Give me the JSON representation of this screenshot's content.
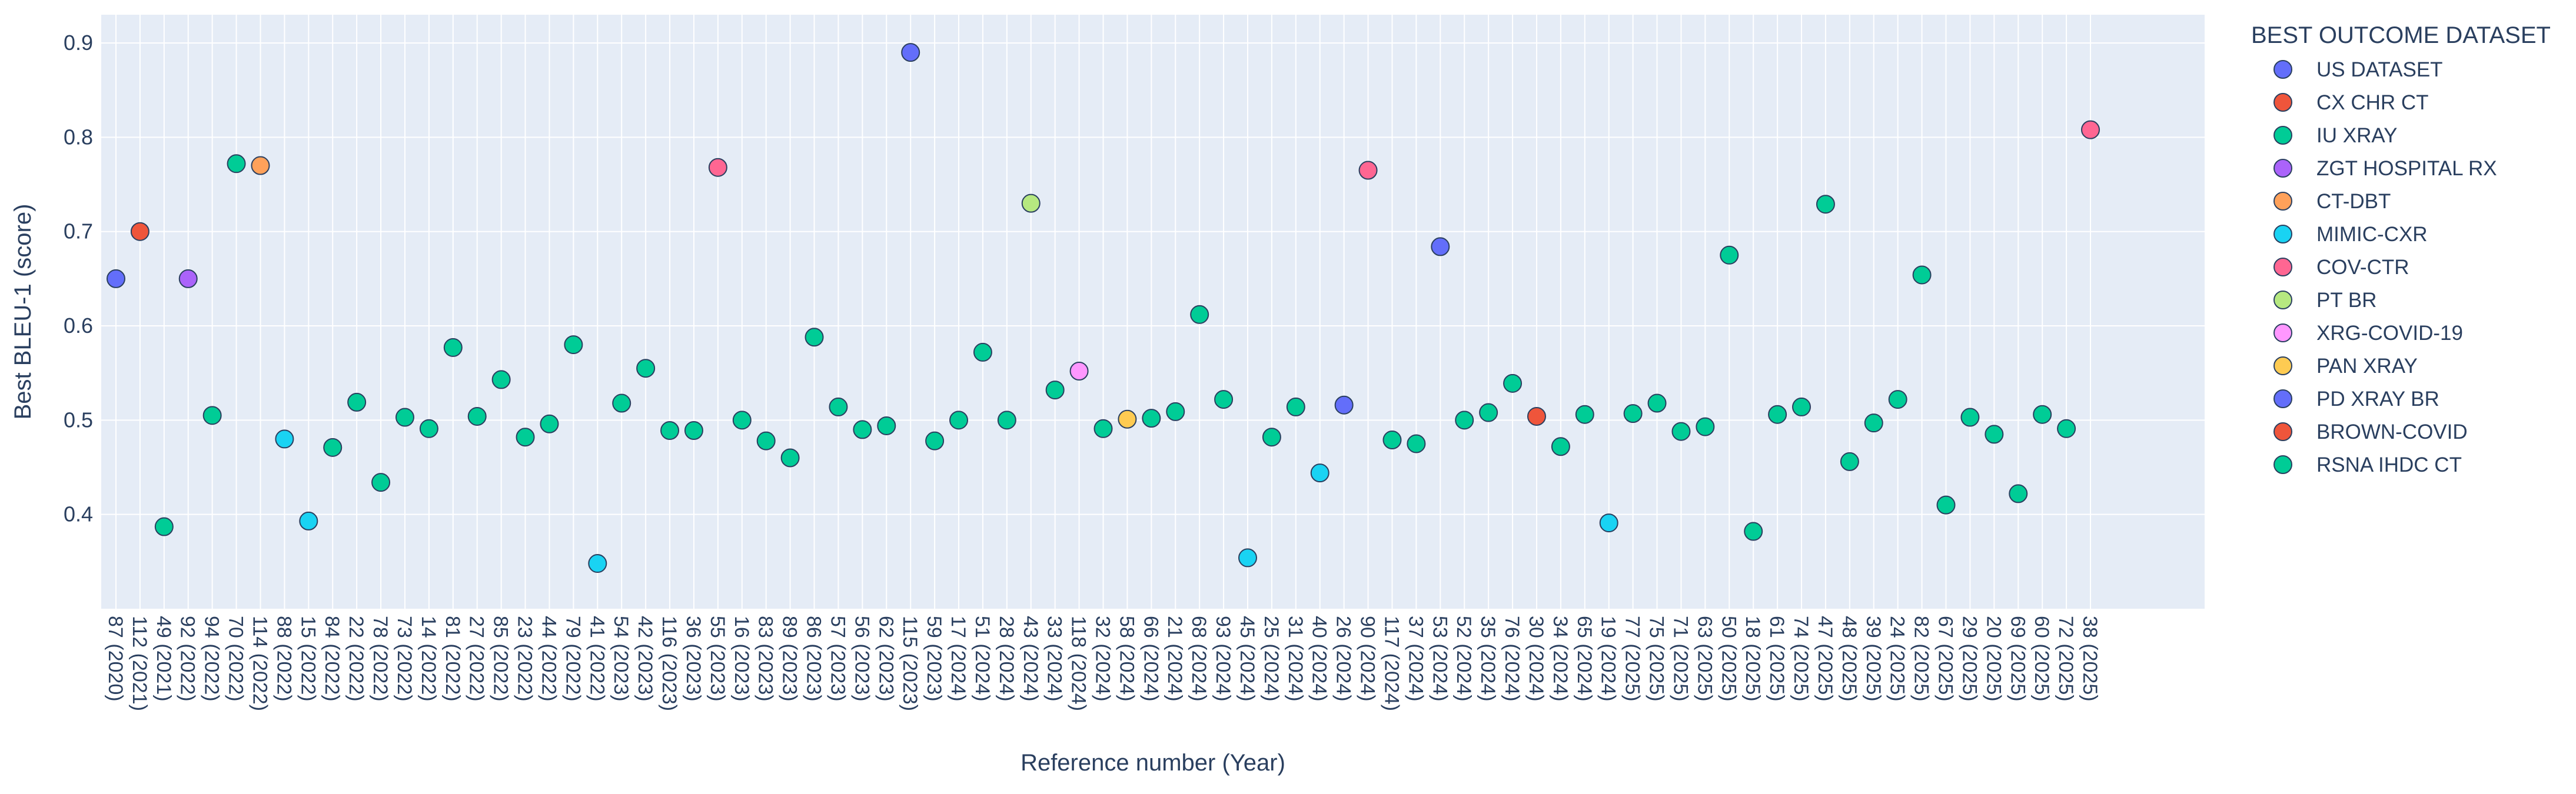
{
  "chart_data": {
    "type": "scatter",
    "title": "",
    "xlabel": "Reference number (Year)",
    "ylabel": "Best BLEU-1 (score)",
    "ylim": [
      0.3,
      0.93
    ],
    "yticks": [
      0.4,
      0.5,
      0.6,
      0.7,
      0.8,
      0.9
    ],
    "grid": true,
    "legend_title": "BEST OUTCOME DATASET",
    "legend_position": "right",
    "series": [
      {
        "name": "US DATASET",
        "color": "#636efa"
      },
      {
        "name": "CX  CHR CT",
        "color": "#ef553b"
      },
      {
        "name": "IU XRAY",
        "color": "#00cc96"
      },
      {
        "name": "ZGT HOSPITAL RX",
        "color": "#ab63fa"
      },
      {
        "name": "CT-DBT",
        "color": "#ffa15a"
      },
      {
        "name": "MIMIC-CXR",
        "color": "#19d3f3"
      },
      {
        "name": "COV-CTR",
        "color": "#ff6692"
      },
      {
        "name": "PT BR",
        "color": "#b6e880"
      },
      {
        "name": "XRG-COVID-19",
        "color": "#ff97ff"
      },
      {
        "name": "PAN XRAY",
        "color": "#fecb52"
      },
      {
        "name": "PD XRAY BR",
        "color": "#636efa"
      },
      {
        "name": "BROWN-COVID",
        "color": "#ef553b"
      },
      {
        "name": "RSNA IHDC CT",
        "color": "#00cc96"
      }
    ],
    "points": [
      {
        "x": "87 (2020)",
        "y": 0.65,
        "series": 0
      },
      {
        "x": "112 (2021)",
        "y": 0.7,
        "series": 1
      },
      {
        "x": "49 (2021)",
        "y": 0.387,
        "series": 2
      },
      {
        "x": "92 (2022)",
        "y": 0.65,
        "series": 3
      },
      {
        "x": "94 (2022)",
        "y": 0.505,
        "series": 2
      },
      {
        "x": "70 (2022)",
        "y": 0.772,
        "series": 2
      },
      {
        "x": "114 (2022)",
        "y": 0.77,
        "series": 4
      },
      {
        "x": "88 (2022)",
        "y": 0.48,
        "series": 5
      },
      {
        "x": "15 (2022)",
        "y": 0.393,
        "series": 5
      },
      {
        "x": "84 (2022)",
        "y": 0.471,
        "series": 2
      },
      {
        "x": "22 (2022)",
        "y": 0.519,
        "series": 2
      },
      {
        "x": "78 (2022)",
        "y": 0.434,
        "series": 2
      },
      {
        "x": "73 (2022)",
        "y": 0.503,
        "series": 2
      },
      {
        "x": "14 (2022)",
        "y": 0.491,
        "series": 2
      },
      {
        "x": "81 (2022)",
        "y": 0.577,
        "series": 2
      },
      {
        "x": "27 (2022)",
        "y": 0.504,
        "series": 2
      },
      {
        "x": "85 (2022)",
        "y": 0.543,
        "series": 2
      },
      {
        "x": "23 (2022)",
        "y": 0.482,
        "series": 2
      },
      {
        "x": "44 (2022)",
        "y": 0.496,
        "series": 2
      },
      {
        "x": "79 (2022)",
        "y": 0.58,
        "series": 2
      },
      {
        "x": "41 (2022)",
        "y": 0.348,
        "series": 5
      },
      {
        "x": "54 (2023)",
        "y": 0.518,
        "series": 2
      },
      {
        "x": "42 (2023)",
        "y": 0.555,
        "series": 2
      },
      {
        "x": "116 (2023)",
        "y": 0.489,
        "series": 2
      },
      {
        "x": "36 (2023)",
        "y": 0.489,
        "series": 2
      },
      {
        "x": "55 (2023)",
        "y": 0.768,
        "series": 6
      },
      {
        "x": "16 (2023)",
        "y": 0.5,
        "series": 2
      },
      {
        "x": "83 (2023)",
        "y": 0.478,
        "series": 2
      },
      {
        "x": "89 (2023)",
        "y": 0.46,
        "series": 2
      },
      {
        "x": "86 (2023)",
        "y": 0.588,
        "series": 2
      },
      {
        "x": "57 (2023)",
        "y": 0.514,
        "series": 2
      },
      {
        "x": "56 (2023)",
        "y": 0.49,
        "series": 2
      },
      {
        "x": "62 (2023)",
        "y": 0.494,
        "series": 2
      },
      {
        "x": "115 (2023)",
        "y": 0.89,
        "series": 0
      },
      {
        "x": "59 (2023)",
        "y": 0.478,
        "series": 2
      },
      {
        "x": "17 (2024)",
        "y": 0.5,
        "series": 2
      },
      {
        "x": "51 (2024)",
        "y": 0.572,
        "series": 2
      },
      {
        "x": "28 (2024)",
        "y": 0.5,
        "series": 2
      },
      {
        "x": "43 (2024)",
        "y": 0.73,
        "series": 7
      },
      {
        "x": "33 (2024)",
        "y": 0.532,
        "series": 2
      },
      {
        "x": "118 (2024)",
        "y": 0.552,
        "series": 8
      },
      {
        "x": "32 (2024)",
        "y": 0.491,
        "series": 2
      },
      {
        "x": "58 (2024)",
        "y": 0.501,
        "series": 9
      },
      {
        "x": "66 (2024)",
        "y": 0.502,
        "series": 2
      },
      {
        "x": "21 (2024)",
        "y": 0.509,
        "series": 2
      },
      {
        "x": "68 (2024)",
        "y": 0.612,
        "series": 2
      },
      {
        "x": "93 (2024)",
        "y": 0.522,
        "series": 2
      },
      {
        "x": "45 (2024)",
        "y": 0.354,
        "series": 5
      },
      {
        "x": "25 (2024)",
        "y": 0.482,
        "series": 2
      },
      {
        "x": "31 (2024)",
        "y": 0.514,
        "series": 2
      },
      {
        "x": "40 (2024)",
        "y": 0.444,
        "series": 5
      },
      {
        "x": "26 (2024)",
        "y": 0.516,
        "series": 10
      },
      {
        "x": "90 (2024)",
        "y": 0.765,
        "series": 6
      },
      {
        "x": "117 (2024)",
        "y": 0.479,
        "series": 2
      },
      {
        "x": "37 (2024)",
        "y": 0.475,
        "series": 2
      },
      {
        "x": "53 (2024)",
        "y": 0.684,
        "series": 10
      },
      {
        "x": "52 (2024)",
        "y": 0.5,
        "series": 2
      },
      {
        "x": "35 (2024)",
        "y": 0.508,
        "series": 2
      },
      {
        "x": "76 (2024)",
        "y": 0.539,
        "series": 2
      },
      {
        "x": "30 (2024)",
        "y": 0.504,
        "series": 11
      },
      {
        "x": "34 (2024)",
        "y": 0.472,
        "series": 2
      },
      {
        "x": "65 (2024)",
        "y": 0.506,
        "series": 2
      },
      {
        "x": "19 (2024)",
        "y": 0.391,
        "series": 5
      },
      {
        "x": "77 (2025)",
        "y": 0.507,
        "series": 2
      },
      {
        "x": "75 (2025)",
        "y": 0.518,
        "series": 2
      },
      {
        "x": "71 (2025)",
        "y": 0.488,
        "series": 2
      },
      {
        "x": "63 (2025)",
        "y": 0.493,
        "series": 2
      },
      {
        "x": "50 (2025)",
        "y": 0.675,
        "series": 2
      },
      {
        "x": "18 (2025)",
        "y": 0.382,
        "series": 2
      },
      {
        "x": "61 (2025)",
        "y": 0.506,
        "series": 2
      },
      {
        "x": "74 (2025)",
        "y": 0.514,
        "series": 2
      },
      {
        "x": "47 (2025)",
        "y": 0.729,
        "series": 2
      },
      {
        "x": "48 (2025)",
        "y": 0.456,
        "series": 2
      },
      {
        "x": "39 (2025)",
        "y": 0.497,
        "series": 2
      },
      {
        "x": "24 (2025)",
        "y": 0.522,
        "series": 2
      },
      {
        "x": "82 (2025)",
        "y": 0.654,
        "series": 2
      },
      {
        "x": "67 (2025)",
        "y": 0.41,
        "series": 2
      },
      {
        "x": "29 (2025)",
        "y": 0.503,
        "series": 2
      },
      {
        "x": "20 (2025)",
        "y": 0.485,
        "series": 2
      },
      {
        "x": "69 (2025)",
        "y": 0.422,
        "series": 2
      },
      {
        "x": "60 (2025)",
        "y": 0.506,
        "series": 2
      },
      {
        "x": "72 (2025)",
        "y": 0.491,
        "series": 2
      },
      {
        "x": "38 (2025)",
        "y": 0.808,
        "series": 6
      }
    ]
  }
}
